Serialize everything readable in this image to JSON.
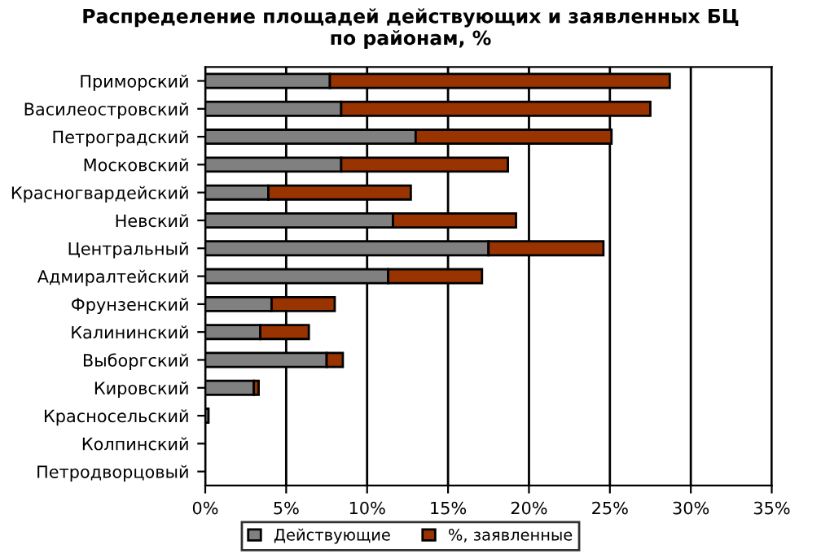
{
  "chart_data": {
    "type": "bar",
    "orientation": "horizontal",
    "stacked": true,
    "title": "Распределение площадей действующих и заявленных БЦ\nпо районам, %",
    "categories": [
      "Приморский",
      "Василеостровский",
      "Петроградский",
      "Московский",
      "Красногвардейский",
      "Невский",
      "Центральный",
      "Адмиралтейский",
      "Фрунзенский",
      "Калининский",
      "Выборгский",
      "Кировский",
      "Красносельский",
      "Колпинский",
      "Петродворцовый"
    ],
    "series": [
      {
        "name": "Действующие",
        "color": "#808080",
        "values": [
          7.7,
          8.4,
          13.0,
          8.4,
          3.9,
          11.6,
          17.5,
          11.3,
          4.1,
          3.4,
          7.5,
          3.0,
          0.2,
          0,
          0
        ]
      },
      {
        "name": "%, заявленные",
        "color": "#993300",
        "values": [
          21.0,
          19.1,
          12.1,
          10.3,
          8.8,
          7.6,
          7.1,
          5.8,
          3.9,
          3.0,
          1.0,
          0.3,
          0,
          0,
          0
        ]
      }
    ],
    "xlim": [
      0,
      35
    ],
    "xticks": [
      {
        "value": 0,
        "label": "0%"
      },
      {
        "value": 5,
        "label": "5%"
      },
      {
        "value": 10,
        "label": "10%"
      },
      {
        "value": 15,
        "label": "15%"
      },
      {
        "value": 20,
        "label": "20%"
      },
      {
        "value": 25,
        "label": "25%"
      },
      {
        "value": 30,
        "label": "30%"
      },
      {
        "value": 35,
        "label": "35%"
      }
    ],
    "grid": "x",
    "legend": "bottom"
  }
}
